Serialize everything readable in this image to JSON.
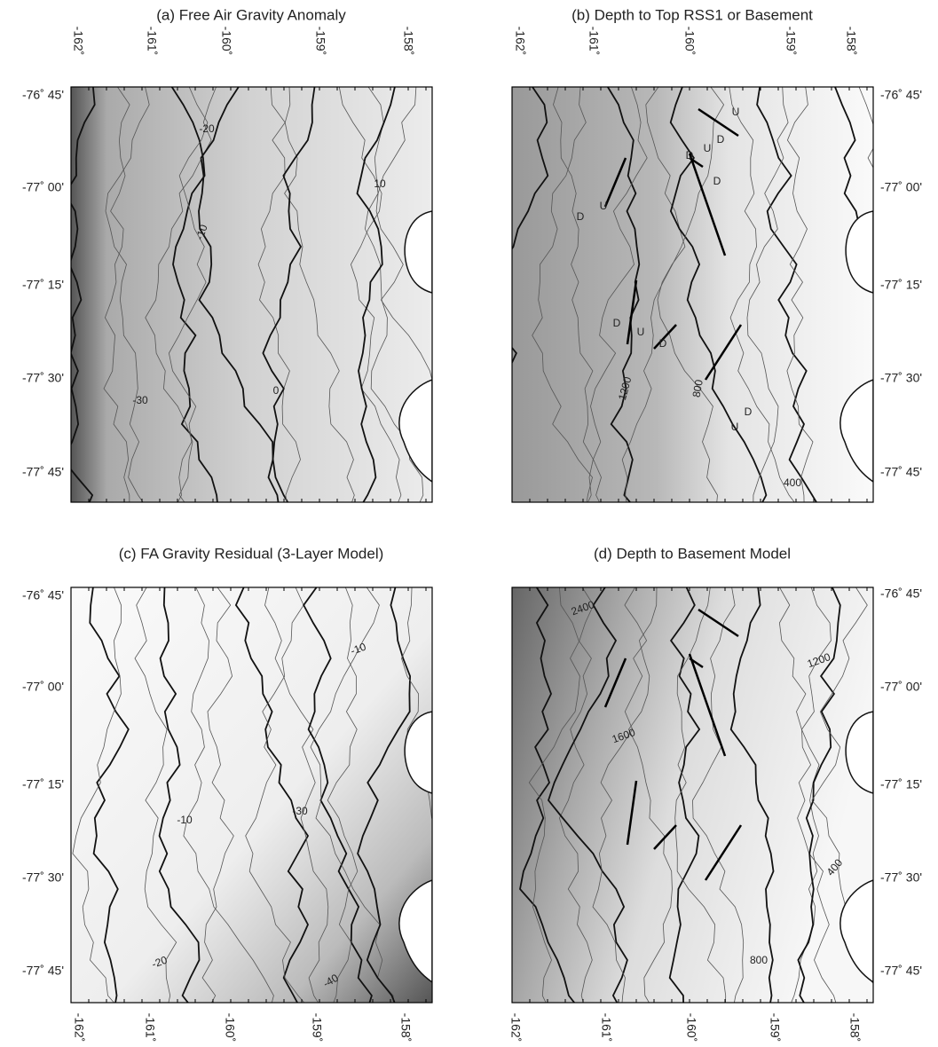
{
  "panels": [
    {
      "title": "(a) Free Air Gravity Anomaly",
      "longitude_labels": [
        "-162˚",
        "-161˚",
        "-160˚",
        "-159˚",
        "-158˚"
      ],
      "latitude_labels": [
        "-76˚ 45'",
        "-77˚ 00'",
        "-77˚ 15'",
        "-77˚ 30'",
        "-77˚ 45'"
      ],
      "contour_labels": [
        "-20",
        "10",
        "-10",
        "-30",
        "0"
      ]
    },
    {
      "title": "(b) Depth to Top RSS1 or Basement",
      "longitude_labels": [
        "-162˚",
        "-161˚",
        "-160˚",
        "-159˚",
        "-158˚"
      ],
      "latitude_labels": [
        "-76˚ 45'",
        "-77˚ 00'",
        "-77˚ 15'",
        "-77˚ 30'",
        "-77˚ 45'"
      ],
      "contour_labels": [
        "U",
        "D",
        "D",
        "U",
        "D",
        "U",
        "D",
        "D",
        "U",
        "D",
        "D",
        "U",
        "1200",
        "800",
        "400"
      ]
    },
    {
      "title": "(c) FA Gravity Residual (3-Layer Model)",
      "longitude_labels": [
        "-162˚",
        "-161˚",
        "-160˚",
        "-159˚",
        "-158˚"
      ],
      "latitude_labels": [
        "-76˚ 45'",
        "-77˚ 00'",
        "-77˚ 15'",
        "-77˚ 30'",
        "-77˚ 45'"
      ],
      "contour_labels": [
        "-10",
        "-10",
        "-30",
        "-20",
        "-40"
      ]
    },
    {
      "title": "(d) Depth to Basement Model",
      "longitude_labels": [
        "-162˚",
        "-161˚",
        "-160˚",
        "-159˚",
        "-158˚"
      ],
      "latitude_labels": [
        "-76˚ 45'",
        "-77˚ 00'",
        "-77˚ 15'",
        "-77˚ 30'",
        "-77˚ 45'"
      ],
      "contour_labels": [
        "2400",
        "1200",
        "1600",
        "400",
        "800"
      ]
    }
  ]
}
